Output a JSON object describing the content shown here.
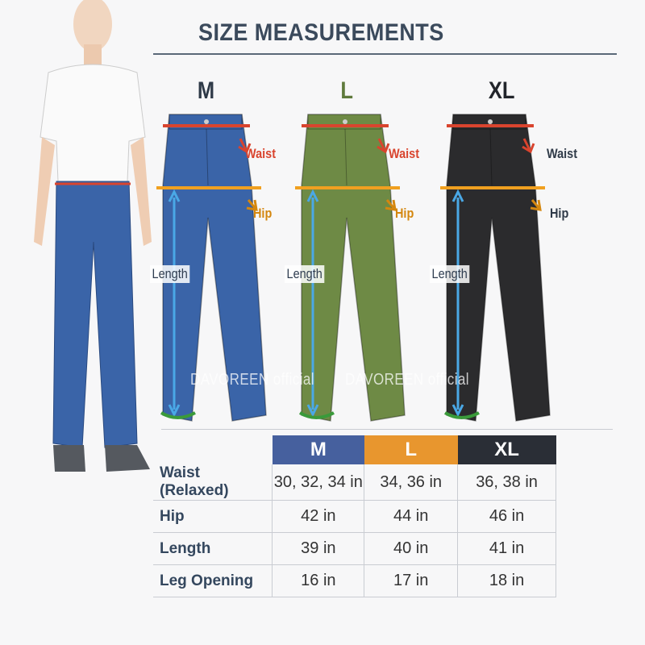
{
  "title": "SIZE MEASUREMENTS",
  "watermark": "DAVOREEN official",
  "sizes": [
    {
      "label": "M",
      "color": "#3f5f9e",
      "pants_color": "#3a64a8",
      "letter_color": "#2f3a48"
    },
    {
      "label": "L",
      "color": "#e8962e",
      "pants_color": "#6e8a45",
      "letter_color": "#5f7a3c"
    },
    {
      "label": "XL",
      "color": "#2a2e36",
      "pants_color": "#2b2b2d",
      "letter_color": "#22252b"
    }
  ],
  "labels": {
    "waist": "Waist",
    "hip": "Hip",
    "length": "Length"
  },
  "label_colors": {
    "waist": "#d9442e",
    "hip": "#d4870f",
    "length": "#4aa8e6",
    "leg": "#3a9a3a"
  },
  "table": {
    "headers": [
      "M",
      "L",
      "XL"
    ],
    "rows": [
      {
        "label": "Waist (Relaxed)",
        "values": [
          "30, 32, 34 in",
          "34, 36 in",
          "36, 38 in"
        ]
      },
      {
        "label": "Hip",
        "values": [
          "42 in",
          "44 in",
          "46 in"
        ]
      },
      {
        "label": "Length",
        "values": [
          "39 in",
          "40 in",
          "41 in"
        ]
      },
      {
        "label": "Leg Opening",
        "values": [
          "16 in",
          "17 in",
          "18 in"
        ]
      }
    ]
  }
}
